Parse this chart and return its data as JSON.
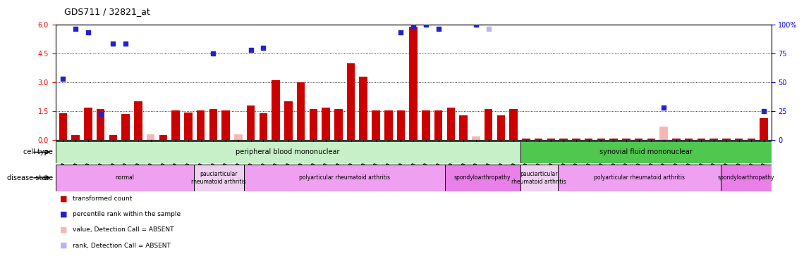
{
  "title": "GDS711 / 32821_at",
  "samples": [
    "GSM23185",
    "GSM23186",
    "GSM23187",
    "GSM23188",
    "GSM23189",
    "GSM23190",
    "GSM23191",
    "GSM23192",
    "GSM23193",
    "GSM23194",
    "GSM23195",
    "GSM23159",
    "GSM23160",
    "GSM23161",
    "GSM23162",
    "GSM23163",
    "GSM23164",
    "GSM23165",
    "GSM23166",
    "GSM23167",
    "GSM23168",
    "GSM23169",
    "GSM23170",
    "GSM23171",
    "GSM23172",
    "GSM23173",
    "GSM23174",
    "GSM23175",
    "GSM23176",
    "GSM23177",
    "GSM23178",
    "GSM23179",
    "GSM23180",
    "GSM23181",
    "GSM23182",
    "GSM23183",
    "GSM23184",
    "GSM23196",
    "GSM23197",
    "GSM23198",
    "GSM23199",
    "GSM23200",
    "GSM23201",
    "GSM23202",
    "GSM23203",
    "GSM23204",
    "GSM23205",
    "GSM23206",
    "GSM23207",
    "GSM23208",
    "GSM23209",
    "GSM23210",
    "GSM23211",
    "GSM23212",
    "GSM23213",
    "GSM23214",
    "GSM23215"
  ],
  "red_values": [
    1.4,
    0.25,
    1.7,
    1.6,
    0.25,
    1.35,
    2.0,
    0.28,
    0.25,
    1.55,
    1.45,
    1.55,
    1.6,
    1.55,
    0.28,
    1.8,
    1.4,
    3.1,
    2.0,
    3.0,
    1.6,
    1.7,
    1.6,
    4.0,
    3.3,
    1.55,
    1.55,
    1.55,
    5.9,
    1.55,
    1.55,
    1.7,
    1.3,
    0.2,
    1.6,
    1.3,
    1.6,
    0.08,
    0.08,
    0.08,
    0.08,
    0.08,
    0.08,
    0.08,
    0.08,
    0.08,
    0.08,
    0.08,
    0.7,
    0.08,
    0.08,
    0.08,
    0.08,
    0.08,
    0.08,
    0.08,
    1.15
  ],
  "blue_values": [
    3.2,
    5.8,
    5.6,
    1.35,
    5.0,
    5.0,
    null,
    null,
    null,
    null,
    null,
    null,
    4.5,
    null,
    null,
    4.7,
    4.8,
    null,
    null,
    null,
    null,
    null,
    null,
    null,
    null,
    null,
    null,
    5.6,
    5.9,
    6.0,
    5.8,
    null,
    null,
    6.0,
    5.8,
    null,
    null,
    null,
    null,
    null,
    null,
    null,
    null,
    null,
    null,
    null,
    null,
    null,
    1.7,
    null,
    null,
    null,
    null,
    null,
    null,
    null,
    1.5
  ],
  "absent_red": [
    false,
    false,
    false,
    false,
    false,
    false,
    false,
    true,
    false,
    false,
    false,
    false,
    false,
    false,
    true,
    false,
    false,
    false,
    false,
    false,
    false,
    false,
    false,
    false,
    false,
    false,
    false,
    false,
    false,
    false,
    false,
    false,
    false,
    true,
    false,
    false,
    false,
    false,
    false,
    false,
    false,
    false,
    false,
    false,
    false,
    false,
    false,
    false,
    true,
    false,
    false,
    false,
    false,
    false,
    false,
    false,
    false
  ],
  "absent_blue": [
    false,
    false,
    false,
    false,
    false,
    false,
    false,
    true,
    false,
    false,
    true,
    false,
    false,
    false,
    true,
    false,
    false,
    false,
    false,
    false,
    false,
    false,
    false,
    false,
    false,
    false,
    false,
    false,
    false,
    false,
    false,
    false,
    false,
    false,
    true,
    false,
    true,
    false,
    false,
    false,
    false,
    false,
    false,
    false,
    false,
    false,
    false,
    false,
    false,
    false,
    false,
    false,
    true,
    false,
    true,
    false,
    false
  ],
  "cell_type_groups": [
    {
      "label": "peripheral blood mononuclear",
      "start": 0,
      "end": 37,
      "color": "#c8f0c8"
    },
    {
      "label": "synovial fluid mononuclear",
      "start": 37,
      "end": 57,
      "color": "#50c850"
    }
  ],
  "disease_state_groups": [
    {
      "label": "normal",
      "start": 0,
      "end": 11,
      "color": "#f0a0f0"
    },
    {
      "label": "pauciarticular\nrheumatoid arthritis",
      "start": 11,
      "end": 15,
      "color": "#f0d0f0"
    },
    {
      "label": "polyarticular rheumatoid arthritis",
      "start": 15,
      "end": 31,
      "color": "#f0a0f0"
    },
    {
      "label": "spondyloarthropathy",
      "start": 31,
      "end": 37,
      "color": "#e880e8"
    },
    {
      "label": "pauciarticular\nrheumatoid arthritis",
      "start": 37,
      "end": 40,
      "color": "#f0d0f0"
    },
    {
      "label": "polyarticular rheumatoid arthritis",
      "start": 40,
      "end": 53,
      "color": "#f0a0f0"
    },
    {
      "label": "spondyloarthropathy",
      "start": 53,
      "end": 57,
      "color": "#e880e8"
    }
  ],
  "ylim_left": [
    0,
    6
  ],
  "ylim_right": [
    0,
    100
  ],
  "yticks_left": [
    0,
    1.5,
    3.0,
    4.5,
    6.0
  ],
  "yticks_right_vals": [
    0,
    25,
    50,
    75,
    100
  ],
  "yticks_right_labels": [
    "0",
    "25",
    "50",
    "75",
    "100%"
  ],
  "hlines": [
    1.5,
    3.0,
    4.5
  ],
  "bar_color": "#cc0000",
  "absent_bar_color": "#f4b8b8",
  "dot_color": "#2222cc",
  "absent_dot_color": "#b8b8ee",
  "background_color": "#ffffff",
  "cell_type_label": "cell type",
  "disease_state_label": "disease state",
  "legend_items": [
    {
      "color": "#cc0000",
      "label": "transformed count"
    },
    {
      "color": "#2222cc",
      "label": "percentile rank within the sample"
    },
    {
      "color": "#f4b8b8",
      "label": "value, Detection Call = ABSENT"
    },
    {
      "color": "#b8b8ee",
      "label": "rank, Detection Call = ABSENT"
    }
  ]
}
